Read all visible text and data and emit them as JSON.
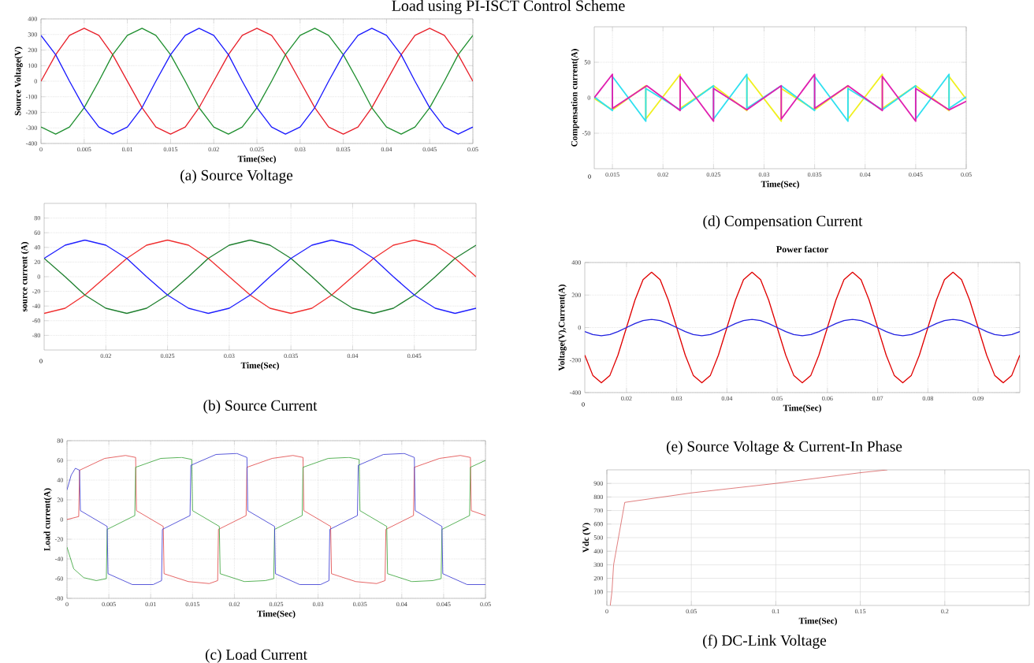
{
  "chart_data": [
    {
      "type": "line",
      "xlabel": "Time(Sec)",
      "ylabel": "Source Voltage(V)",
      "grid": true,
      "annotations": [
        "Load using PI-ISCT Control Scheme",
        "(a) Source Voltage"
      ],
      "xlim": [
        0,
        0.05
      ],
      "ylim": [
        -400,
        400
      ],
      "xticks": [
        0,
        0.005,
        0.01,
        0.015,
        0.02,
        0.025,
        0.03,
        0.035,
        0.04,
        0.045,
        0.05
      ],
      "yticks": [
        -400,
        -300,
        -200,
        -100,
        0,
        100,
        200,
        300,
        400
      ],
      "x": [
        0,
        0.0017,
        0.0033,
        0.005,
        0.0067,
        0.0083,
        0.01,
        0.0117,
        0.0133,
        0.015,
        0.0167,
        0.0183,
        0.02,
        0.0217,
        0.0233,
        0.025,
        0.0267,
        0.0283,
        0.03,
        0.0317,
        0.0333,
        0.035,
        0.0367,
        0.0383,
        0.04,
        0.0417,
        0.0433,
        0.045,
        0.0467,
        0.0483,
        0.05
      ],
      "series": [
        {
          "color": "#e8202a",
          "values": [
            0,
            170,
            294,
            340,
            294,
            170,
            0,
            -170,
            -294,
            -340,
            -294,
            -170,
            0,
            170,
            294,
            340,
            294,
            170,
            0,
            -170,
            -294,
            -340,
            -294,
            -170,
            0,
            170,
            294,
            340,
            294,
            170,
            0
          ]
        },
        {
          "color": "#1f8f2f",
          "values": [
            -294,
            -340,
            -294,
            -170,
            0,
            170,
            294,
            340,
            294,
            170,
            0,
            -170,
            -294,
            -340,
            -294,
            -170,
            0,
            170,
            294,
            340,
            294,
            170,
            0,
            -170,
            -294,
            -340,
            -294,
            -170,
            0,
            170,
            294
          ]
        },
        {
          "color": "#1a1aff",
          "values": [
            294,
            170,
            0,
            -170,
            -294,
            -340,
            -294,
            -170,
            0,
            170,
            294,
            340,
            294,
            170,
            0,
            -170,
            -294,
            -340,
            -294,
            -170,
            0,
            170,
            294,
            340,
            294,
            170,
            0,
            -170,
            -294,
            -340,
            -294
          ]
        }
      ]
    },
    {
      "type": "line",
      "xlabel": "Time(Sec)",
      "ylabel": "source current (A)",
      "grid": true,
      "annotations": [
        "0",
        "(b) Source Current"
      ],
      "xlim": [
        0.015,
        0.05
      ],
      "ylim": [
        -100,
        100
      ],
      "xticks": [
        0.02,
        0.025,
        0.03,
        0.035,
        0.04,
        0.045
      ],
      "yticks": [
        -80,
        -60,
        -40,
        -20,
        0,
        20,
        40,
        60,
        80
      ],
      "x": [
        0.015,
        0.0167,
        0.0183,
        0.02,
        0.0217,
        0.0233,
        0.025,
        0.0267,
        0.0283,
        0.03,
        0.0317,
        0.0333,
        0.035,
        0.0367,
        0.0383,
        0.04,
        0.0417,
        0.0433,
        0.045,
        0.0467,
        0.0483,
        0.05
      ],
      "series": [
        {
          "color": "#f03030",
          "values": [
            -50,
            -43,
            -25,
            0,
            25,
            43,
            50,
            43,
            25,
            0,
            -25,
            -43,
            -50,
            -43,
            -25,
            0,
            25,
            43,
            50,
            43,
            25,
            0
          ]
        },
        {
          "color": "#208030",
          "values": [
            25,
            0,
            -25,
            -43,
            -50,
            -43,
            -25,
            0,
            25,
            43,
            50,
            43,
            25,
            0,
            -25,
            -43,
            -50,
            -43,
            -25,
            0,
            25,
            43
          ]
        },
        {
          "color": "#2020ff",
          "values": [
            25,
            43,
            50,
            43,
            25,
            0,
            -25,
            -43,
            -50,
            -43,
            -25,
            0,
            25,
            43,
            50,
            43,
            25,
            0,
            -25,
            -43,
            -50,
            -43
          ]
        }
      ]
    },
    {
      "type": "line",
      "xlabel": "Time(Sec)",
      "ylabel": "Load current(A)",
      "grid": true,
      "annotations": [
        "(c) Load Current"
      ],
      "xlim": [
        0,
        0.05
      ],
      "ylim": [
        -80,
        80
      ],
      "xticks": [
        0,
        0.005,
        0.01,
        0.015,
        0.02,
        0.025,
        0.03,
        0.035,
        0.04,
        0.045,
        0.05
      ],
      "yticks": [
        -80,
        -60,
        -40,
        -20,
        0,
        20,
        40,
        60,
        80
      ],
      "series": [
        {
          "color": "#e04040",
          "x": [
            0,
            0.0014,
            0.0015,
            0.0045,
            0.007,
            0.0082,
            0.0083,
            0.0115,
            0.0116,
            0.0145,
            0.017,
            0.018,
            0.0181,
            0.0214,
            0.0215,
            0.0245,
            0.027,
            0.0282,
            0.0283,
            0.0315,
            0.0316,
            0.0345,
            0.037,
            0.038,
            0.0381,
            0.0414,
            0.0415,
            0.0445,
            0.047,
            0.0482,
            0.0483,
            0.05
          ],
          "values": [
            0,
            3,
            50,
            62,
            65,
            63,
            9,
            -7,
            -55,
            -63,
            -65,
            -62,
            -10,
            4,
            53,
            62,
            65,
            63,
            9,
            -7,
            -55,
            -63,
            -65,
            -62,
            -10,
            4,
            53,
            62,
            65,
            63,
            9,
            4
          ]
        },
        {
          "color": "#30a030",
          "x": [
            0,
            0.0008,
            0.002,
            0.0035,
            0.0047,
            0.0048,
            0.0081,
            0.0082,
            0.0112,
            0.0137,
            0.0149,
            0.015,
            0.0182,
            0.0183,
            0.0212,
            0.0237,
            0.0247,
            0.0248,
            0.0281,
            0.0282,
            0.0312,
            0.0337,
            0.0349,
            0.035,
            0.0382,
            0.0383,
            0.0412,
            0.0437,
            0.0447,
            0.0448,
            0.0481,
            0.0482,
            0.05
          ],
          "values": [
            -28,
            -50,
            -59,
            -62,
            -60,
            -10,
            4,
            53,
            62,
            63,
            61,
            9,
            -7,
            -55,
            -63,
            -62,
            -60,
            -10,
            4,
            53,
            62,
            63,
            61,
            9,
            -7,
            -55,
            -63,
            -62,
            -60,
            -10,
            4,
            53,
            60
          ]
        },
        {
          "color": "#3030d0",
          "x": [
            0,
            0.0005,
            0.001,
            0.0015,
            0.0016,
            0.0048,
            0.0049,
            0.0078,
            0.0103,
            0.0113,
            0.0114,
            0.0147,
            0.0148,
            0.0178,
            0.0203,
            0.0215,
            0.0216,
            0.0248,
            0.0249,
            0.0278,
            0.0303,
            0.0313,
            0.0314,
            0.0347,
            0.0348,
            0.0378,
            0.0403,
            0.0415,
            0.0416,
            0.0448,
            0.0449,
            0.0478,
            0.05
          ],
          "values": [
            30,
            45,
            52,
            50,
            9,
            -7,
            -55,
            -66,
            -66,
            -62,
            -10,
            4,
            55,
            66,
            67,
            63,
            9,
            -7,
            -55,
            -66,
            -66,
            -62,
            -10,
            4,
            55,
            66,
            67,
            63,
            9,
            -7,
            -55,
            -66,
            -66
          ]
        }
      ]
    },
    {
      "type": "line",
      "xlabel": "Time(Sec)",
      "ylabel": "Compensation current(A)",
      "grid": true,
      "annotations": [
        "0",
        "(d) Compensation Current"
      ],
      "xlim": [
        0.0132,
        0.05
      ],
      "ylim": [
        -100,
        100
      ],
      "xticks": [
        0.015,
        0.02,
        0.025,
        0.03,
        0.035,
        0.04,
        0.045,
        0.05
      ],
      "yticks": [
        -50,
        0,
        50
      ],
      "series": [
        {
          "color": "#f0f020",
          "x": [
            0.0132,
            0.015,
            0.0183,
            0.0183,
            0.0217,
            0.0217,
            0.025,
            0.0283,
            0.0283,
            0.0317,
            0.0317,
            0.035,
            0.0383,
            0.0383,
            0.0417,
            0.0417,
            0.045,
            0.0483,
            0.0483,
            0.05
          ],
          "values": [
            -1,
            -17,
            17,
            -30,
            33,
            -15,
            17,
            -18,
            30,
            -33,
            13,
            -17,
            17,
            -30,
            33,
            -15,
            17,
            -18,
            30,
            -2
          ]
        },
        {
          "color": "#30e0f0",
          "x": [
            0.0132,
            0.015,
            0.015,
            0.0183,
            0.0183,
            0.0217,
            0.025,
            0.025,
            0.0283,
            0.0283,
            0.0317,
            0.035,
            0.035,
            0.0383,
            0.0383,
            0.0417,
            0.045,
            0.045,
            0.0483,
            0.0483,
            0.05
          ],
          "values": [
            1,
            -18,
            30,
            -33,
            13,
            -17,
            17,
            -30,
            33,
            -15,
            17,
            -18,
            30,
            -33,
            13,
            -17,
            17,
            -30,
            33,
            -15,
            1
          ]
        },
        {
          "color": "#e020b0",
          "x": [
            0.0132,
            0.015,
            0.015,
            0.0184,
            0.0217,
            0.0217,
            0.025,
            0.025,
            0.0283,
            0.0317,
            0.0317,
            0.035,
            0.035,
            0.0383,
            0.0417,
            0.0417,
            0.045,
            0.045,
            0.0483,
            0.05
          ],
          "values": [
            0,
            33,
            -15,
            17,
            -18,
            30,
            -33,
            13,
            -17,
            17,
            -30,
            33,
            -15,
            17,
            -18,
            30,
            -33,
            13,
            -17,
            -5
          ]
        }
      ]
    },
    {
      "type": "line",
      "title": "Power factor",
      "xlabel": "Time(Sec)",
      "ylabel": "Voltage(V),Current(A)",
      "grid": true,
      "annotations": [
        "0",
        "(e) Source Voltage & Current-In Phase"
      ],
      "xlim": [
        0.0117,
        0.0983
      ],
      "ylim": [
        -400,
        400
      ],
      "xticks": [
        0.02,
        0.03,
        0.04,
        0.05,
        0.06,
        0.07,
        0.08,
        0.09
      ],
      "yticks": [
        -400,
        -200,
        0,
        200,
        400
      ],
      "x": [
        0.0117,
        0.0133,
        0.015,
        0.0167,
        0.0183,
        0.02,
        0.0217,
        0.0233,
        0.025,
        0.0267,
        0.0283,
        0.03,
        0.0317,
        0.0333,
        0.035,
        0.0367,
        0.0383,
        0.04,
        0.0417,
        0.0433,
        0.045,
        0.0467,
        0.0483,
        0.05,
        0.0517,
        0.0533,
        0.055,
        0.0567,
        0.0583,
        0.06,
        0.0617,
        0.0633,
        0.065,
        0.0667,
        0.0683,
        0.07,
        0.0717,
        0.0733,
        0.075,
        0.0767,
        0.0783,
        0.08,
        0.0817,
        0.0833,
        0.085,
        0.0867,
        0.0883,
        0.09,
        0.0917,
        0.0933,
        0.095,
        0.0967,
        0.0983
      ],
      "series": [
        {
          "color": "#e00000",
          "values": [
            -170,
            -294,
            -340,
            -294,
            -170,
            0,
            170,
            294,
            340,
            294,
            170,
            0,
            -170,
            -294,
            -340,
            -294,
            -170,
            0,
            170,
            294,
            340,
            294,
            170,
            0,
            -170,
            -294,
            -340,
            -294,
            -170,
            0,
            170,
            294,
            340,
            294,
            170,
            0,
            -170,
            -294,
            -340,
            -294,
            -170,
            0,
            170,
            294,
            340,
            294,
            170,
            0,
            -170,
            -294,
            -340,
            -294,
            -170
          ]
        },
        {
          "color": "#2020e0",
          "values": [
            -25,
            -43,
            -50,
            -43,
            -25,
            0,
            25,
            43,
            50,
            43,
            25,
            0,
            -25,
            -43,
            -50,
            -43,
            -25,
            0,
            25,
            43,
            50,
            43,
            25,
            0,
            -25,
            -43,
            -50,
            -43,
            -25,
            0,
            25,
            43,
            50,
            43,
            25,
            0,
            -25,
            -43,
            -50,
            -43,
            -25,
            0,
            25,
            43,
            50,
            43,
            25,
            0,
            -25,
            -43,
            -50,
            -43,
            -25
          ]
        }
      ]
    },
    {
      "type": "line",
      "xlabel": "Time(Sec)",
      "ylabel": "Vdc (V)",
      "grid": true,
      "annotations": [
        "(f) DC-Link Voltage"
      ],
      "xlim": [
        0,
        0.25
      ],
      "ylim": [
        0,
        1000
      ],
      "xticks": [
        0,
        0.05,
        0.1,
        0.15,
        0.2
      ],
      "yticks": [
        100,
        200,
        300,
        400,
        500,
        600,
        700,
        800,
        900
      ],
      "series": [
        {
          "color": "#d04040",
          "x": [
            0.002,
            0.003,
            0.004,
            0.0106,
            0.05,
            0.1,
            0.15,
            0.166
          ],
          "values": [
            0,
            100,
            300,
            760,
            830,
            900,
            979,
            1000
          ]
        }
      ]
    }
  ]
}
